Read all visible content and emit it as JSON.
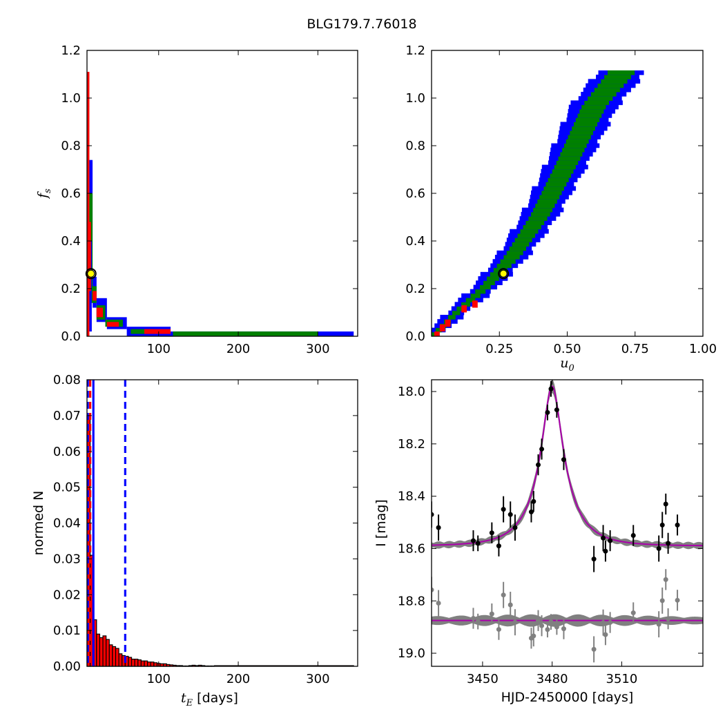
{
  "figure_title": "BLG179.7.76018",
  "chart_data": [
    {
      "id": "tE_fs",
      "type": "heatmap",
      "ylabel_main": "f",
      "ylabel_sub": "s",
      "xlim": [
        10,
        350
      ],
      "ylim": [
        0.0,
        1.2
      ],
      "xticks": [
        100,
        200,
        300
      ],
      "yticks": [
        0.0,
        0.2,
        0.4,
        0.6,
        0.8,
        1.0,
        1.2
      ],
      "ytick_labels": [
        "0.0",
        "0.2",
        "0.4",
        "0.6",
        "0.8",
        "1.0",
        "1.2"
      ],
      "best_fit": {
        "x": 15,
        "y": 0.263
      },
      "colors": {
        "outer": "#0000ff",
        "mid": "#008000",
        "inner": "#ff0000"
      },
      "regions": [
        {
          "c": "blue",
          "x": [
            13,
            17
          ],
          "y": [
            0.14,
            0.74
          ]
        },
        {
          "c": "green",
          "x": [
            13,
            17
          ],
          "y": [
            0.16,
            0.6
          ]
        },
        {
          "c": "blue",
          "x": [
            12,
            16
          ],
          "y": [
            0.02,
            0.4
          ]
        },
        {
          "c": "red",
          "x": [
            10,
            13
          ],
          "y": [
            0.0,
            1.11
          ]
        },
        {
          "c": "red",
          "x": [
            13,
            15
          ],
          "y": [
            0.19,
            0.48
          ]
        },
        {
          "c": "blue",
          "x": [
            17,
            22
          ],
          "y": [
            0.12,
            0.25
          ]
        },
        {
          "c": "green",
          "x": [
            16,
            22
          ],
          "y": [
            0.14,
            0.21
          ]
        },
        {
          "c": "red",
          "x": [
            17,
            22
          ],
          "y": [
            0.15,
            0.19
          ]
        },
        {
          "c": "blue",
          "x": [
            22,
            35
          ],
          "y": [
            0.06,
            0.16
          ]
        },
        {
          "c": "green",
          "x": [
            22,
            33
          ],
          "y": [
            0.07,
            0.13
          ]
        },
        {
          "c": "red",
          "x": [
            22,
            30
          ],
          "y": [
            0.08,
            0.12
          ]
        },
        {
          "c": "blue",
          "x": [
            35,
            60
          ],
          "y": [
            0.03,
            0.08
          ]
        },
        {
          "c": "green",
          "x": [
            33,
            55
          ],
          "y": [
            0.04,
            0.07
          ]
        },
        {
          "c": "red",
          "x": [
            35,
            50
          ],
          "y": [
            0.04,
            0.06
          ]
        },
        {
          "c": "blue",
          "x": [
            60,
            115
          ],
          "y": [
            0.0,
            0.04
          ]
        },
        {
          "c": "green",
          "x": [
            65,
            95
          ],
          "y": [
            0.01,
            0.03
          ]
        },
        {
          "c": "red",
          "x": [
            82,
            115
          ],
          "y": [
            0.01,
            0.03
          ]
        },
        {
          "c": "blue",
          "x": [
            115,
            345
          ],
          "y": [
            0.0,
            0.02
          ]
        },
        {
          "c": "green",
          "x": [
            118,
            300
          ],
          "y": [
            0.0,
            0.02
          ]
        }
      ]
    },
    {
      "id": "u0_fs",
      "type": "heatmap",
      "xlabel_main": "u",
      "xlabel_sub": "0",
      "xlim": [
        0.0,
        1.0
      ],
      "ylim": [
        0.0,
        1.2
      ],
      "xticks": [
        0.25,
        0.5,
        0.75,
        1.0
      ],
      "xtick_labels": [
        "0.25",
        "0.50",
        "0.75",
        "1.00"
      ],
      "yticks": [
        0.0,
        0.2,
        0.4,
        0.6,
        0.8,
        1.0,
        1.2
      ],
      "ytick_labels": [
        "0.0",
        "0.2",
        "0.4",
        "0.6",
        "0.8",
        "1.0",
        "1.2"
      ],
      "best_fit": {
        "x": 0.265,
        "y": 0.263
      },
      "band": {
        "u_center": [
          0.01,
          0.1,
          0.2,
          0.3,
          0.4,
          0.5,
          0.6,
          0.7
        ],
        "fs_center": [
          0.0,
          0.1,
          0.2,
          0.33,
          0.5,
          0.72,
          0.96,
          1.1
        ],
        "half_width_outer": [
          0.02,
          0.03,
          0.04,
          0.05,
          0.06,
          0.07,
          0.08,
          0.08
        ],
        "half_width_inner": [
          0.01,
          0.015,
          0.02,
          0.03,
          0.035,
          0.04,
          0.045,
          0.05
        ]
      },
      "red_cells": [
        {
          "x": [
            0.01,
            0.03
          ],
          "y": [
            0.0,
            0.02
          ]
        },
        {
          "x": [
            0.03,
            0.05
          ],
          "y": [
            0.02,
            0.05
          ]
        },
        {
          "x": [
            0.05,
            0.07
          ],
          "y": [
            0.04,
            0.07
          ]
        },
        {
          "x": [
            0.11,
            0.13
          ],
          "y": [
            0.1,
            0.13
          ]
        },
        {
          "x": [
            0.15,
            0.17
          ],
          "y": [
            0.12,
            0.15
          ]
        }
      ]
    },
    {
      "id": "tE_hist",
      "type": "bar",
      "ylabel": "normed N",
      "xlabel_math": "t",
      "xlabel_sub": "E",
      "xlabel_rest": " [days]",
      "xlim": [
        10,
        350
      ],
      "ylim": [
        0.0,
        0.08
      ],
      "xticks": [
        100,
        200,
        300
      ],
      "yticks": [
        0.0,
        0.01,
        0.02,
        0.03,
        0.04,
        0.05,
        0.06,
        0.07,
        0.08
      ],
      "ytick_labels": [
        "0.00",
        "0.01",
        "0.02",
        "0.03",
        "0.04",
        "0.05",
        "0.06",
        "0.07",
        "0.08"
      ],
      "bin_width": 4,
      "bin_start": 10,
      "values": [
        0.07,
        0.031,
        0.013,
        0.009,
        0.008,
        0.0085,
        0.0075,
        0.006,
        0.0055,
        0.005,
        0.0035,
        0.003,
        0.0028,
        0.0025,
        0.002,
        0.002,
        0.0018,
        0.0015,
        0.0015,
        0.0012,
        0.0012,
        0.001,
        0.0008,
        0.0007,
        0.0007,
        0.0005,
        0.0004,
        0.0003,
        0.0002,
        0.0002,
        0.0001,
        0.0001,
        0.0002,
        0.0003,
        0.0002,
        0.0003,
        0.0002,
        0.0001,
        0.0001,
        0.0001
      ],
      "tail_level": 0.0002,
      "tail_end": 345,
      "vlines": [
        {
          "x": 11,
          "style": "dashed",
          "color": "#0000ff"
        },
        {
          "x": 14,
          "style": "dashed",
          "color": "#ff0000"
        },
        {
          "x": 18,
          "style": "solid",
          "color": "#0000ff"
        },
        {
          "x": 58,
          "style": "dashed",
          "color": "#0000ff"
        }
      ]
    },
    {
      "id": "lightcurve",
      "type": "scatter",
      "xlabel": "HJD-2450000 [days]",
      "ylabel": "I [mag]",
      "xlim": [
        3428,
        3545
      ],
      "ylim_inverted": [
        19.05,
        17.955
      ],
      "xticks": [
        3450,
        3480,
        3510
      ],
      "yticks": [
        18.0,
        18.2,
        18.4,
        18.6,
        18.8,
        19.0
      ],
      "ytick_labels": [
        "18.0",
        "18.2",
        "18.4",
        "18.6",
        "18.8",
        "19.0"
      ],
      "model": {
        "t0": 3480,
        "tE": 15,
        "u0": 0.265,
        "base": 18.59,
        "peak": 17.98,
        "color": "#aa00aa"
      },
      "residual_offset": 18.875,
      "data": [
        {
          "t": 3428,
          "m": 18.47,
          "e": 0.05
        },
        {
          "t": 3431,
          "m": 18.52,
          "e": 0.05
        },
        {
          "t": 3446,
          "m": 18.57,
          "e": 0.04
        },
        {
          "t": 3448,
          "m": 18.58,
          "e": 0.03
        },
        {
          "t": 3454,
          "m": 18.54,
          "e": 0.04
        },
        {
          "t": 3457,
          "m": 18.59,
          "e": 0.04
        },
        {
          "t": 3459,
          "m": 18.45,
          "e": 0.05
        },
        {
          "t": 3462,
          "m": 18.47,
          "e": 0.05
        },
        {
          "t": 3464,
          "m": 18.52,
          "e": 0.05
        },
        {
          "t": 3471,
          "m": 18.46,
          "e": 0.04
        },
        {
          "t": 3472,
          "m": 18.42,
          "e": 0.04
        },
        {
          "t": 3474,
          "m": 18.28,
          "e": 0.04
        },
        {
          "t": 3475.5,
          "m": 18.22,
          "e": 0.04
        },
        {
          "t": 3478,
          "m": 18.08,
          "e": 0.03
        },
        {
          "t": 3479.5,
          "m": 17.99,
          "e": 0.03
        },
        {
          "t": 3482,
          "m": 18.07,
          "e": 0.03
        },
        {
          "t": 3485,
          "m": 18.26,
          "e": 0.04
        },
        {
          "t": 3498,
          "m": 18.64,
          "e": 0.05
        },
        {
          "t": 3502,
          "m": 18.56,
          "e": 0.05
        },
        {
          "t": 3503,
          "m": 18.61,
          "e": 0.04
        },
        {
          "t": 3505,
          "m": 18.57,
          "e": 0.04
        },
        {
          "t": 3515,
          "m": 18.55,
          "e": 0.04
        },
        {
          "t": 3526,
          "m": 18.6,
          "e": 0.05
        },
        {
          "t": 3527.5,
          "m": 18.51,
          "e": 0.05
        },
        {
          "t": 3529,
          "m": 18.43,
          "e": 0.04
        },
        {
          "t": 3530,
          "m": 18.58,
          "e": 0.04
        },
        {
          "t": 3534,
          "m": 18.51,
          "e": 0.04
        }
      ]
    }
  ]
}
